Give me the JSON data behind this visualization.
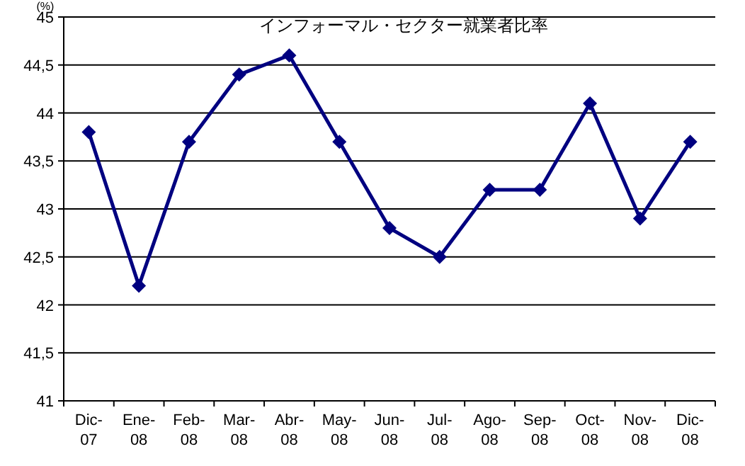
{
  "chart_data": {
    "type": "line",
    "title": "インフォーマル・セクター就業者比率",
    "ylabel": "(%)",
    "categories": [
      "Dic-07",
      "Ene-08",
      "Feb-08",
      "Mar-08",
      "Abr-08",
      "May-08",
      "Jun-08",
      "Jul-08",
      "Ago-08",
      "Sep-08",
      "Oct-08",
      "Nov-08",
      "Dic-08"
    ],
    "series": [
      {
        "color": "#000080",
        "values": [
          43.8,
          42.2,
          43.7,
          44.4,
          44.6,
          43.7,
          42.8,
          42.5,
          43.2,
          43.2,
          44.1,
          42.9,
          43.7
        ]
      }
    ],
    "ylim": [
      41,
      45
    ],
    "yticks": [
      41,
      {
        "value": 41.5,
        "label": "41,5"
      },
      42,
      {
        "value": 42.5,
        "label": "42,5"
      },
      43,
      {
        "value": 43.5,
        "label": "43,5"
      },
      44,
      {
        "value": 44.5,
        "label": "44,5"
      },
      45
    ],
    "grid": "y",
    "marker": "diamond",
    "line_style": "solid"
  }
}
